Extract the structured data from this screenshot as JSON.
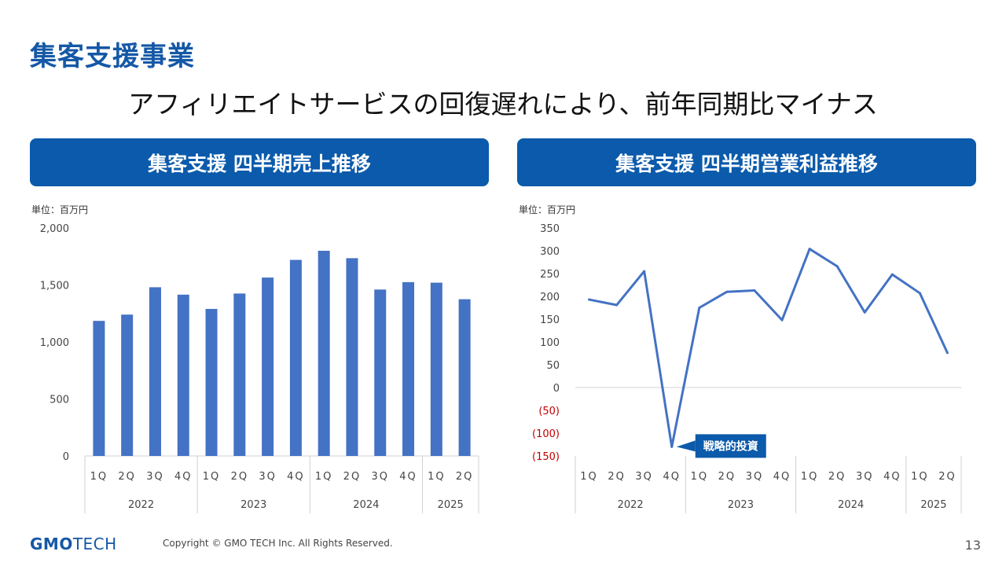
{
  "header": {
    "title": "集客支援事業",
    "subtitle": "アフィリエイトサービスの回復遅れにより、前年同期比マイナス"
  },
  "left_panel": {
    "title": "集客支援 四半期売上推移",
    "unit": "単位：百万円"
  },
  "right_panel": {
    "title": "集客支援 四半期営業利益推移",
    "unit": "単位：百万円"
  },
  "footer": {
    "logo_bold": "GMO",
    "logo_thin": "TECH",
    "copyright": "Copyright © GMO TECH Inc. All Rights Reserved.",
    "page_number": "13"
  },
  "colors": {
    "accent": "#0b5aab",
    "bar": "#4472c4",
    "line": "#4472c4",
    "negative": "#c00000"
  },
  "chart_data": [
    {
      "type": "bar",
      "categories": [
        "1Q",
        "2Q",
        "3Q",
        "4Q",
        "1Q",
        "2Q",
        "3Q",
        "4Q",
        "1Q",
        "2Q",
        "3Q",
        "4Q",
        "1Q",
        "2Q"
      ],
      "groups": [
        {
          "label": "2022",
          "count": 4
        },
        {
          "label": "2023",
          "count": 4
        },
        {
          "label": "2024",
          "count": 4
        },
        {
          "label": "2025",
          "count": 2
        }
      ],
      "values": [
        1185,
        1240,
        1480,
        1415,
        1290,
        1425,
        1565,
        1720,
        1800,
        1735,
        1460,
        1525,
        1520,
        1375
      ],
      "ylim": [
        0,
        2000
      ],
      "yticks": [
        "0",
        "500",
        "1,000",
        "1,500",
        "2,000"
      ],
      "ytick_values": [
        0,
        500,
        1000,
        1500,
        2000
      ]
    },
    {
      "type": "line",
      "categories": [
        "1Q",
        "2Q",
        "3Q",
        "4Q",
        "1Q",
        "2Q",
        "3Q",
        "4Q",
        "1Q",
        "2Q",
        "3Q",
        "4Q",
        "1Q",
        "2Q"
      ],
      "groups": [
        {
          "label": "2022",
          "count": 4
        },
        {
          "label": "2023",
          "count": 4
        },
        {
          "label": "2024",
          "count": 4
        },
        {
          "label": "2025",
          "count": 2
        }
      ],
      "values": [
        193,
        181,
        255,
        -130,
        175,
        210,
        213,
        148,
        304,
        266,
        165,
        248,
        207,
        76
      ],
      "ylim": [
        -150,
        350
      ],
      "yticks": [
        "(150)",
        "(100)",
        "(50)",
        "0",
        "50",
        "100",
        "150",
        "200",
        "250",
        "300",
        "350"
      ],
      "ytick_values": [
        -150,
        -100,
        -50,
        0,
        50,
        100,
        150,
        200,
        250,
        300,
        350
      ],
      "annotation": {
        "text": "戦略的投資",
        "index": 3
      }
    }
  ]
}
